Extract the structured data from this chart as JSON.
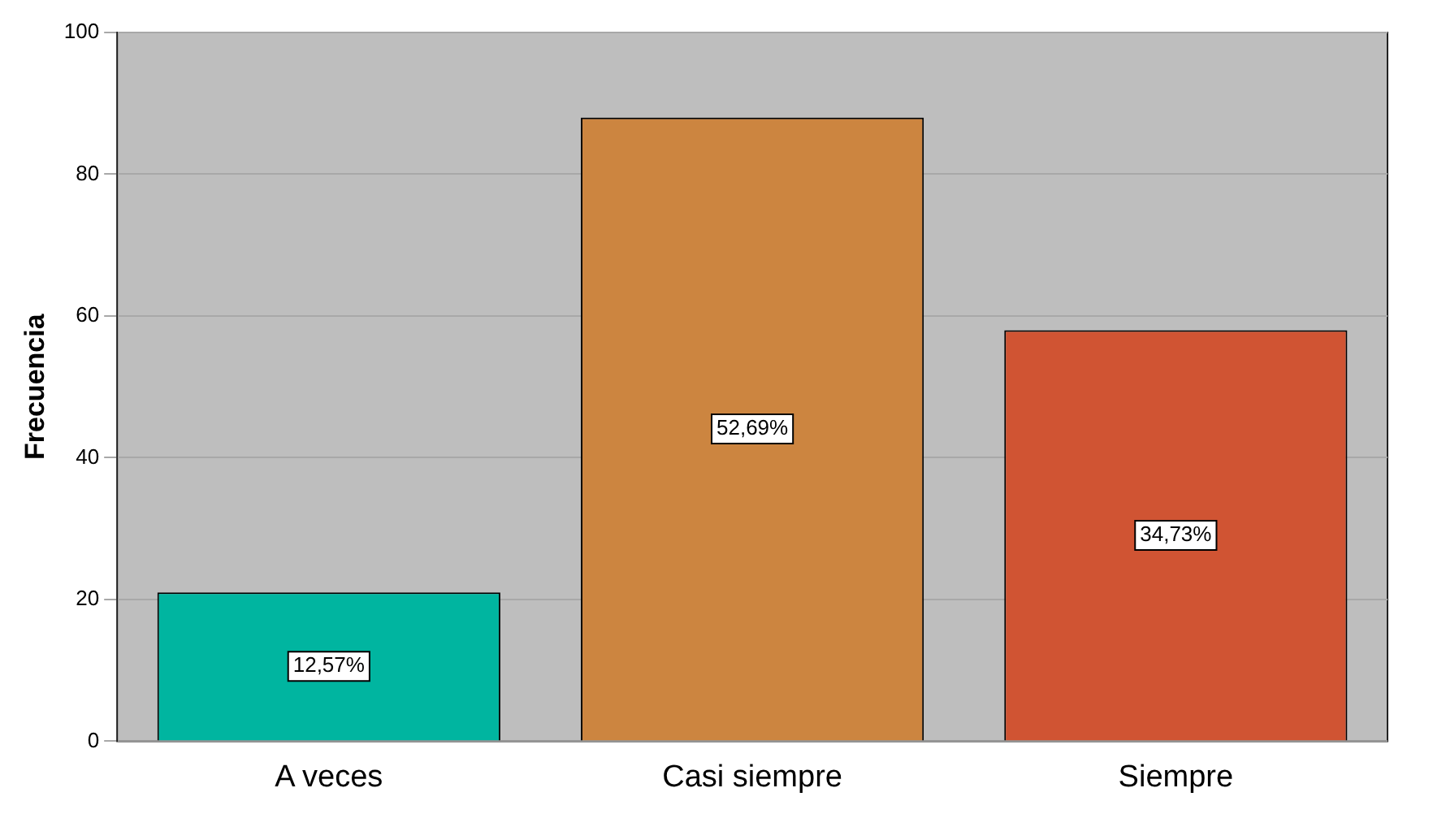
{
  "chart_data": {
    "type": "bar",
    "ylabel": "Frecuencia",
    "categories": [
      "A veces",
      "Casi siempre",
      "Siempre"
    ],
    "values": [
      21,
      88,
      58
    ],
    "colors": [
      "#00b5a0",
      "#cc8540",
      "#d05433"
    ],
    "annotations": [
      "12,57%",
      "52,69%",
      "34,73%"
    ],
    "ylim": [
      0,
      100
    ],
    "yticks": [
      0,
      20,
      40,
      60,
      80,
      100
    ],
    "grid": "y",
    "legend": false
  }
}
